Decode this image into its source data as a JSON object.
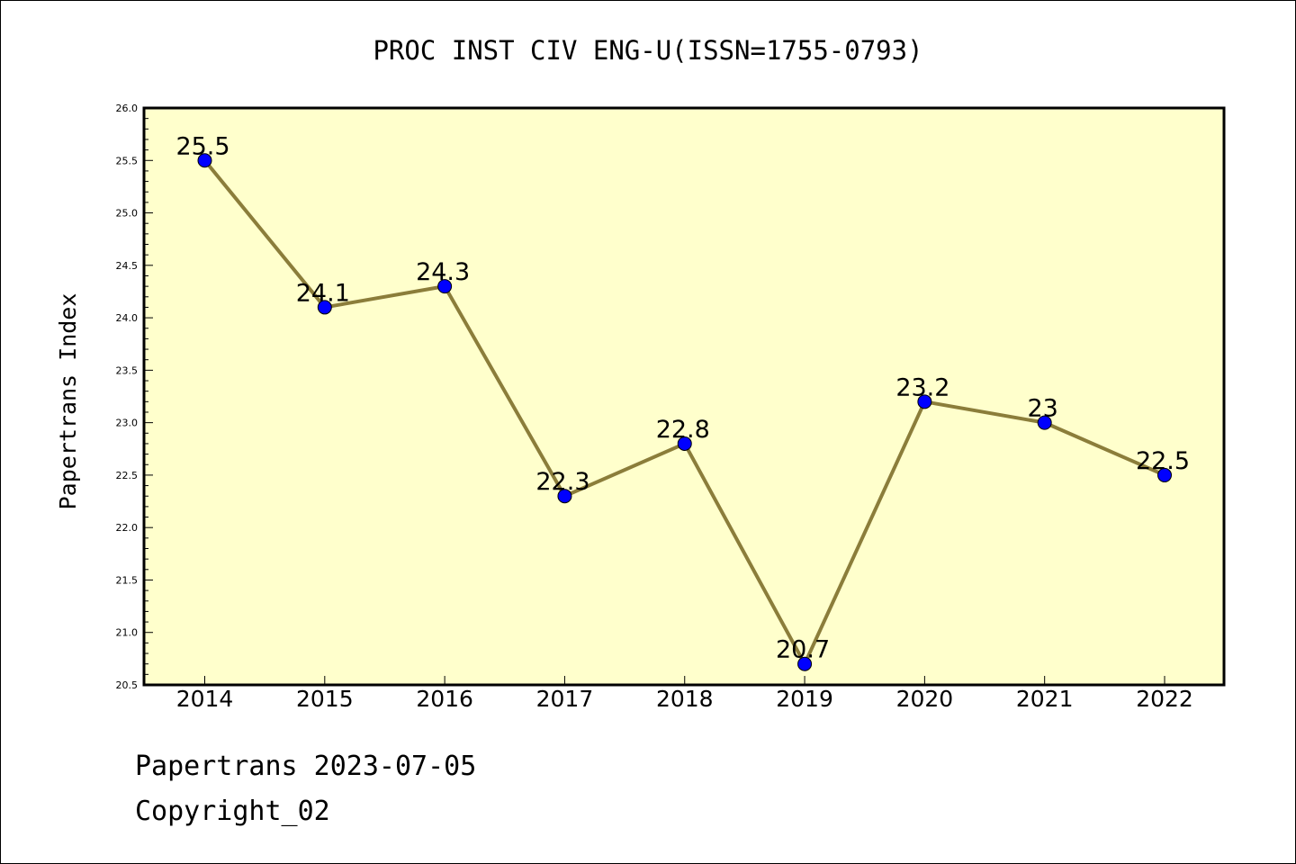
{
  "chart_data": {
    "type": "line",
    "title": "PROC INST CIV ENG-U(ISSN=1755-0793)",
    "xlabel": "",
    "ylabel": "Papertrans Index",
    "categories": [
      "2014",
      "2015",
      "2016",
      "2017",
      "2018",
      "2019",
      "2020",
      "2021",
      "2022"
    ],
    "values": [
      25.5,
      24.1,
      24.3,
      22.3,
      22.8,
      20.7,
      23.2,
      23.0,
      22.5
    ],
    "data_labels": [
      "25.5",
      "24.1",
      "24.3",
      "22.3",
      "22.8",
      "20.7",
      "23.2",
      "23",
      "22.5"
    ],
    "ylim": [
      20.5,
      26.0
    ],
    "yticks": [
      "20.5",
      "21.0",
      "21.5",
      "22.0",
      "22.5",
      "23.0",
      "23.5",
      "24.0",
      "24.5",
      "25.0",
      "25.5",
      "26.0"
    ],
    "grid": false,
    "colors": {
      "plot_background": "#ffffcc",
      "line": "#8b7d3a",
      "marker": "#0000ff"
    }
  },
  "footer": {
    "line1": "Papertrans 2023-07-05",
    "line2": "Copyright_02"
  }
}
